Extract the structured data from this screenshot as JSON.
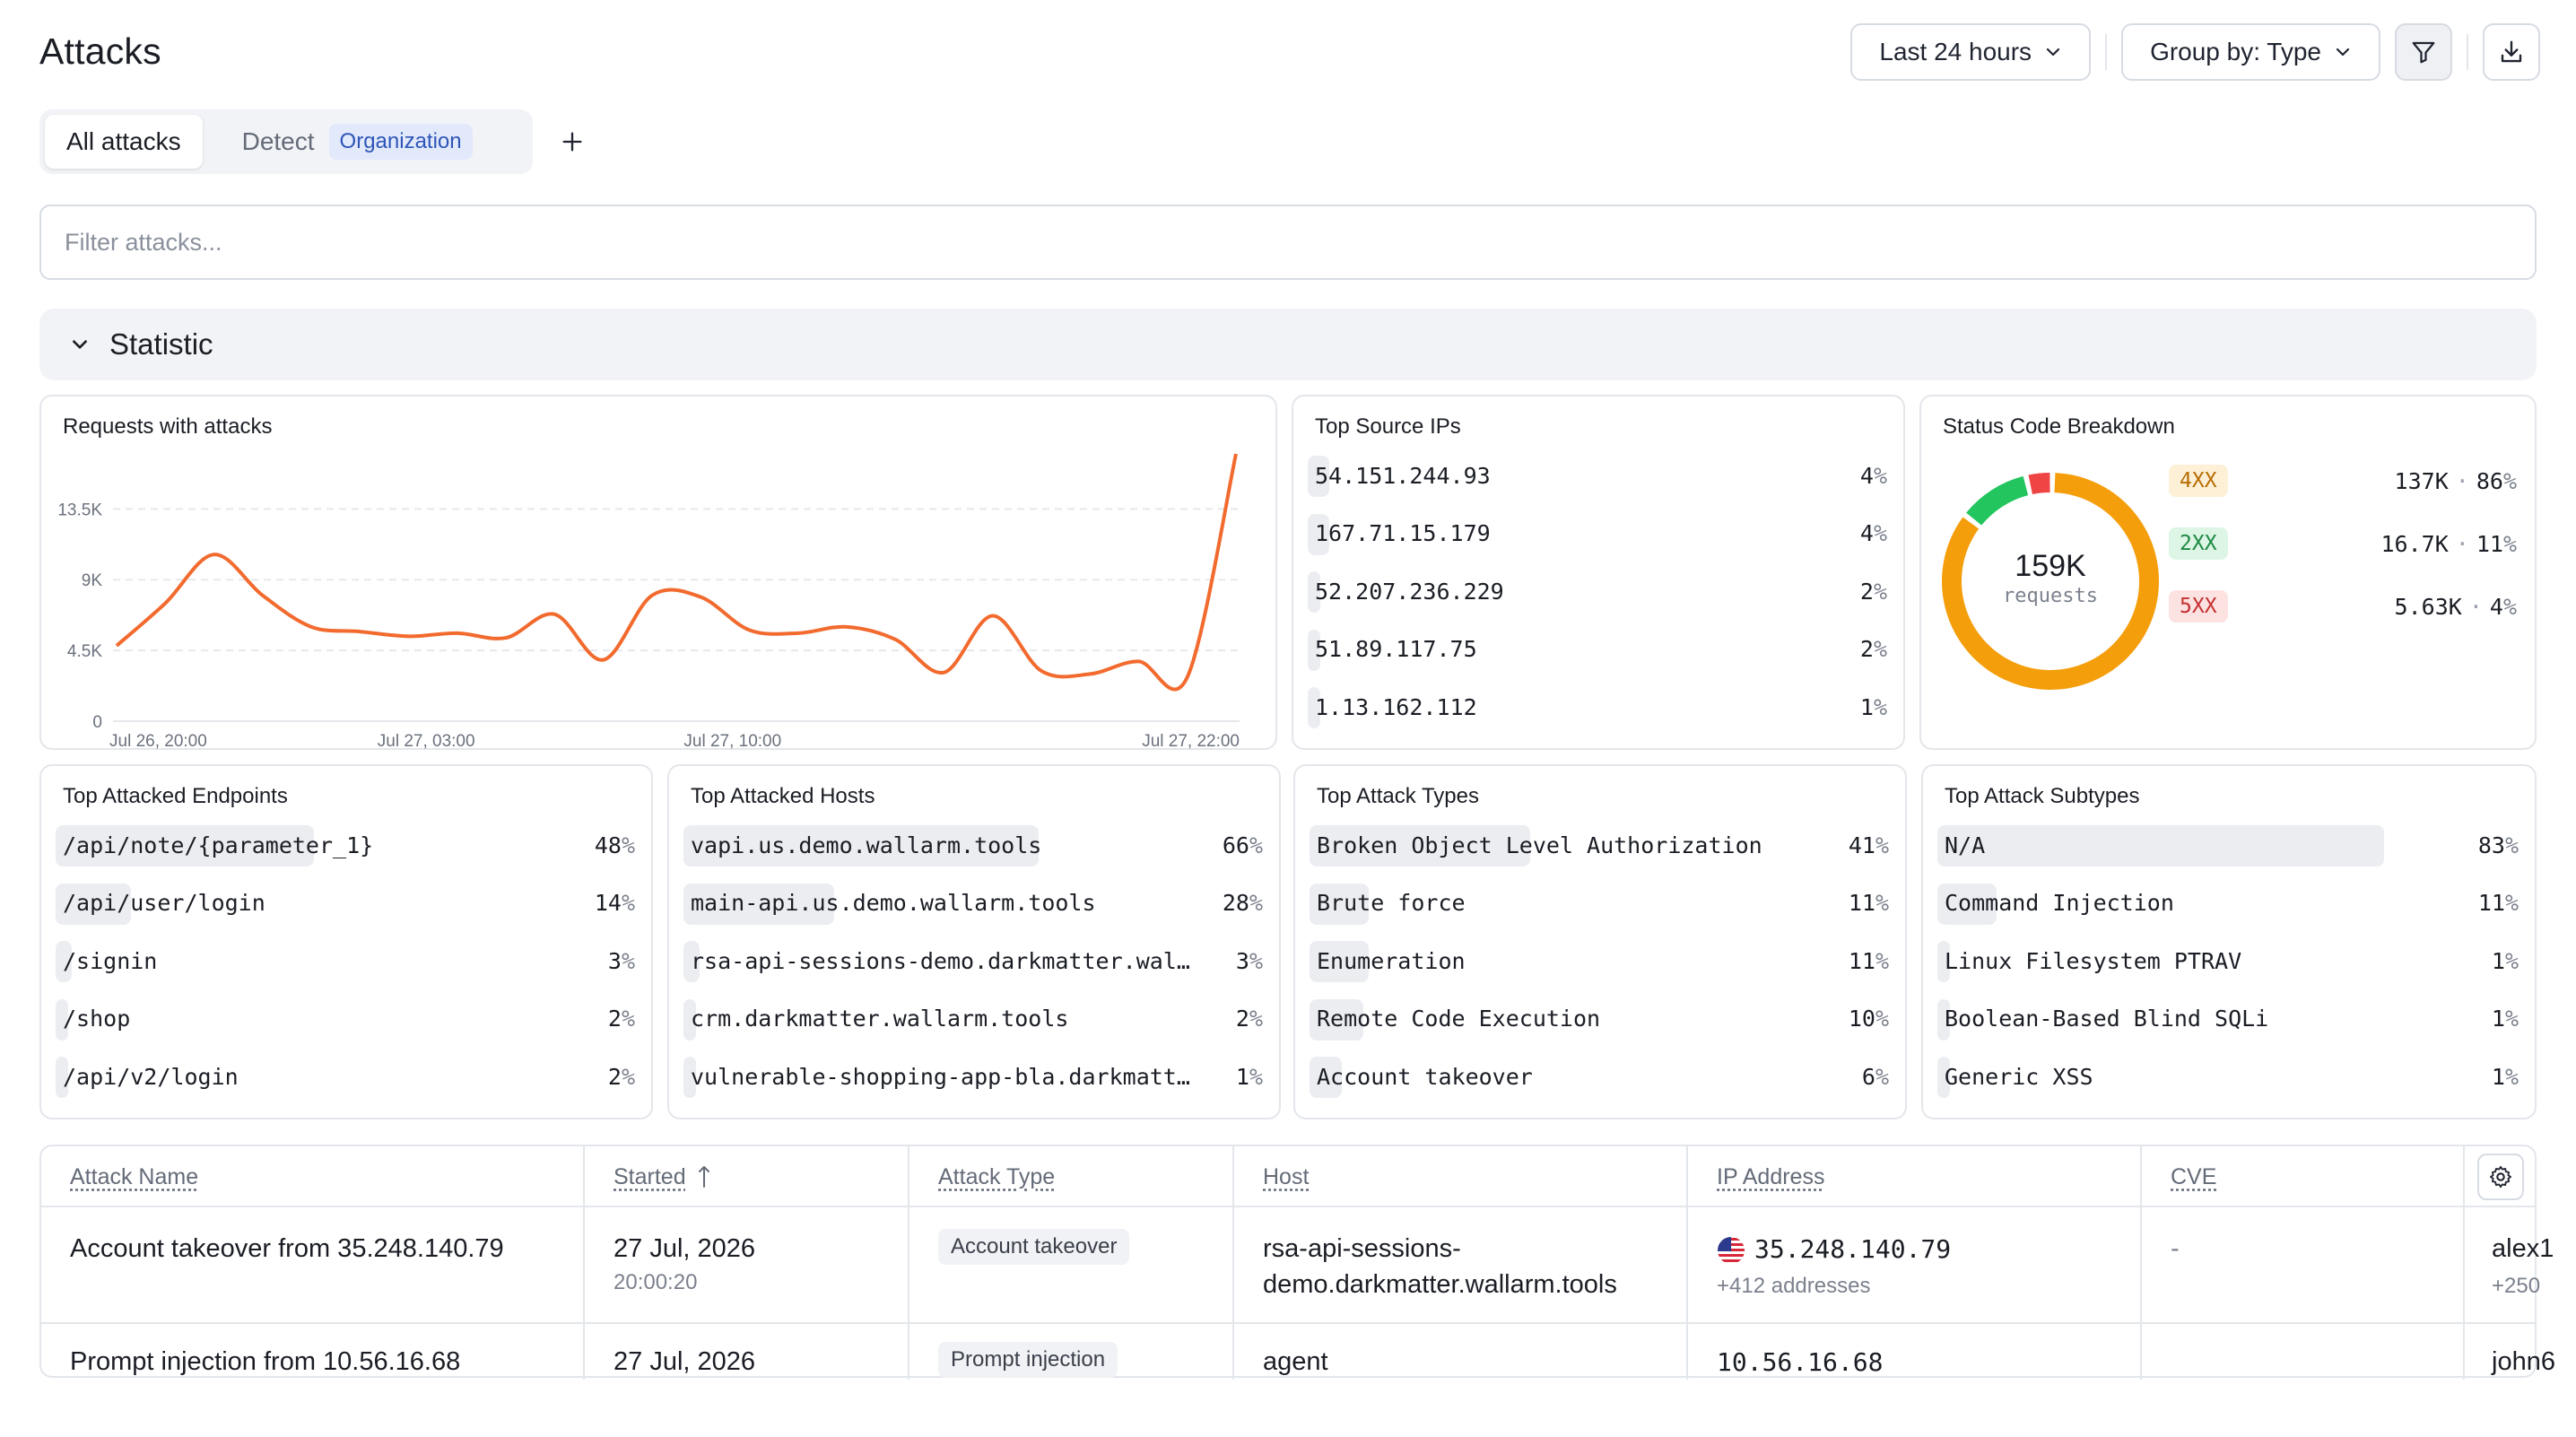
{
  "header": {
    "title": "Attacks",
    "time_range": "Last 24 hours",
    "group_by": "Group by: Type"
  },
  "tabs": [
    {
      "label": "All attacks",
      "selected": true
    },
    {
      "label": "Detect",
      "badge": "Organization",
      "selected": false
    }
  ],
  "filter": {
    "placeholder": "Filter attacks..."
  },
  "statistic": {
    "label": "Statistic"
  },
  "requests_chart": {
    "title": "Requests with attacks",
    "chart_data": {
      "type": "line",
      "x_labels": [
        "Jul 26, 20:00",
        "Jul 27, 03:00",
        "Jul 27, 10:00",
        "Jul 27, 22:00"
      ],
      "y_ticks": [
        "0",
        "4.5K",
        "9K",
        "13.5K"
      ],
      "ylim": [
        0,
        17000
      ],
      "color": "#f26a2e",
      "values": [
        4800,
        7500,
        10600,
        8000,
        6000,
        5700,
        5400,
        5600,
        5300,
        6800,
        3900,
        8000,
        7900,
        5800,
        5600,
        6000,
        5200,
        3100,
        6700,
        3200,
        3000,
        3800,
        2800,
        17000
      ]
    }
  },
  "top_source_ips": {
    "title": "Top Source IPs",
    "items": [
      {
        "name": "54.151.244.93",
        "pct": 4
      },
      {
        "name": "167.71.15.179",
        "pct": 4
      },
      {
        "name": "52.207.236.229",
        "pct": 2
      },
      {
        "name": "51.89.117.75",
        "pct": 2
      },
      {
        "name": "1.13.162.112",
        "pct": 1
      }
    ]
  },
  "status_breakdown": {
    "title": "Status Code Breakdown",
    "total": "159K",
    "total_label": "requests",
    "items": [
      {
        "code": "4XX",
        "count": "137K",
        "pct": 86,
        "color": "#f59e0b",
        "bg": "#fdf0d6",
        "fg": "#b76e04"
      },
      {
        "code": "2XX",
        "count": "16.7K",
        "pct": 11,
        "color": "#22c55e",
        "bg": "#dcf5e4",
        "fg": "#1f8a45"
      },
      {
        "code": "5XX",
        "count": "5.63K",
        "pct": 4,
        "color": "#ef4444",
        "bg": "#fde2e2",
        "fg": "#c63131"
      }
    ]
  },
  "top_endpoints": {
    "title": "Top Attacked Endpoints",
    "items": [
      {
        "name": "/api/note/{parameter_1}",
        "pct": 48
      },
      {
        "name": "/api/user/login",
        "pct": 14
      },
      {
        "name": "/signin",
        "pct": 3
      },
      {
        "name": "/shop",
        "pct": 2
      },
      {
        "name": "/api/v2/login",
        "pct": 2
      }
    ]
  },
  "top_hosts": {
    "title": "Top Attacked Hosts",
    "items": [
      {
        "name": "vapi.us.demo.wallarm.tools",
        "pct": 66
      },
      {
        "name": "main-api.us.demo.wallarm.tools",
        "pct": 28
      },
      {
        "name": "rsa-api-sessions-demo.darkmatter.wal…",
        "pct": 3
      },
      {
        "name": "crm.darkmatter.wallarm.tools",
        "pct": 2
      },
      {
        "name": "vulnerable-shopping-app-bla.darkmatt…",
        "pct": 1
      }
    ]
  },
  "top_attack_types": {
    "title": "Top Attack Types",
    "items": [
      {
        "name": "Broken Object Level Authorization",
        "pct": 41
      },
      {
        "name": "Brute force",
        "pct": 11
      },
      {
        "name": "Enumeration",
        "pct": 11
      },
      {
        "name": "Remote Code Execution",
        "pct": 10
      },
      {
        "name": "Account takeover",
        "pct": 6
      }
    ]
  },
  "top_attack_subtypes": {
    "title": "Top Attack Subtypes",
    "items": [
      {
        "name": "N/A",
        "pct": 83
      },
      {
        "name": "Command Injection",
        "pct": 11
      },
      {
        "name": "Linux Filesystem PTRAV",
        "pct": 1
      },
      {
        "name": "Boolean-Based Blind SQLi",
        "pct": 1
      },
      {
        "name": "Generic XSS",
        "pct": 1
      }
    ]
  },
  "table": {
    "columns": [
      "Attack Name",
      "Started",
      "Attack Type",
      "Host",
      "IP Address",
      "CVE"
    ],
    "rows": [
      {
        "name": "Account takeover from 35.248.140.79",
        "date": "27 Jul, 2026",
        "time": "20:00:20",
        "type": "Account takeover",
        "host_line1": "rsa-api-sessions-",
        "host_line2": "demo.darkmatter.wallarm.tools",
        "ip": "35.248.140.79",
        "ip_more": "+412 addresses",
        "cve": "-",
        "extra": "alex1",
        "extra_more": "+250"
      },
      {
        "name": "Prompt injection from 10.56.16.68",
        "date": "27 Jul, 2026",
        "type": "Prompt injection",
        "host_line1": "agent",
        "ip": "10.56.16.68",
        "extra": "john6"
      }
    ]
  }
}
